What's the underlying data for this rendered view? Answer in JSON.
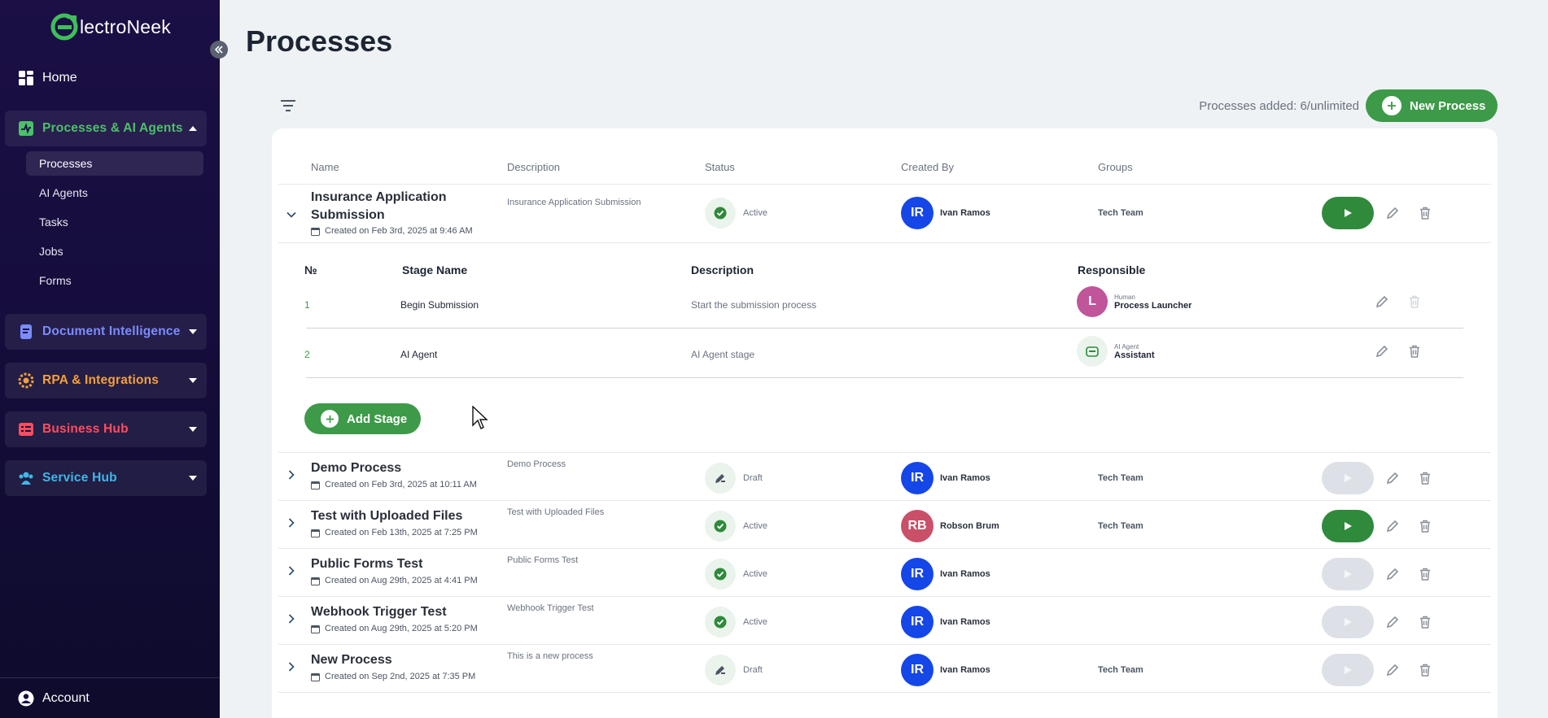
{
  "brand": {
    "name": "lectroNeek"
  },
  "sidebar": {
    "home": "Home",
    "groups": [
      {
        "label": "Processes & AI Agents",
        "color": "#4cc06a"
      },
      {
        "label": "Document Intelligence",
        "color": "#7b8cff"
      },
      {
        "label": "RPA & Integrations",
        "color": "#f4a03a"
      },
      {
        "label": "Business Hub",
        "color": "#ff4d5e"
      },
      {
        "label": "Service Hub",
        "color": "#3fb7e8"
      }
    ],
    "sub_items": [
      "Processes",
      "AI Agents",
      "Tasks",
      "Jobs",
      "Forms"
    ],
    "account": "Account"
  },
  "page": {
    "title": "Processes",
    "processes_added": "Processes added: 6/unlimited",
    "new_process": "New Process"
  },
  "table": {
    "headers": {
      "name": "Name",
      "description": "Description",
      "status": "Status",
      "created_by": "Created By",
      "groups": "Groups"
    },
    "rows": [
      {
        "name": "Insurance Application Submission",
        "created": "Created on Feb 3rd, 2025 at 9:46 AM",
        "description": "Insurance Application Submission",
        "status": "Active",
        "initials": "IR",
        "creator": "Ivan Ramos",
        "group": "Tech Team"
      },
      {
        "name": "Demo Process",
        "created": "Created on Feb 3rd, 2025 at 10:11 AM",
        "description": "Demo Process",
        "status": "Draft",
        "initials": "IR",
        "creator": "Ivan Ramos",
        "group": "Tech Team"
      },
      {
        "name": "Test with Uploaded Files",
        "created": "Created on Feb 13th, 2025 at 7:25 PM",
        "description": "Test with Uploaded Files",
        "status": "Active",
        "initials": "RB",
        "creator": "Robson Brum",
        "group": "Tech Team"
      },
      {
        "name": "Public Forms Test",
        "created": "Created on Aug 29th, 2025 at 4:41 PM",
        "description": "Public Forms Test",
        "status": "Active",
        "initials": "IR",
        "creator": "Ivan Ramos",
        "group": ""
      },
      {
        "name": "Webhook Trigger Test",
        "created": "Created on Aug 29th, 2025 at 5:20 PM",
        "description": "Webhook Trigger Test",
        "status": "Active",
        "initials": "IR",
        "creator": "Ivan Ramos",
        "group": ""
      },
      {
        "name": "New Process",
        "created": "Created on Sep 2nd, 2025 at 7:35 PM",
        "description": "This is a new process",
        "status": "Draft",
        "initials": "IR",
        "creator": "Ivan Ramos",
        "group": "Tech Team"
      }
    ]
  },
  "stages": {
    "headers": {
      "num": "№",
      "name": "Stage Name",
      "description": "Description",
      "responsible": "Responsible"
    },
    "rows": [
      {
        "num": "1",
        "name": "Begin Submission",
        "description": "Start the submission process",
        "type": "Human",
        "responsible": "Process Launcher",
        "initial": "L"
      },
      {
        "num": "2",
        "name": "AI Agent",
        "description": "AI Agent stage",
        "type": "AI Agent",
        "responsible": "Assistant"
      }
    ],
    "add_stage": "Add Stage"
  }
}
